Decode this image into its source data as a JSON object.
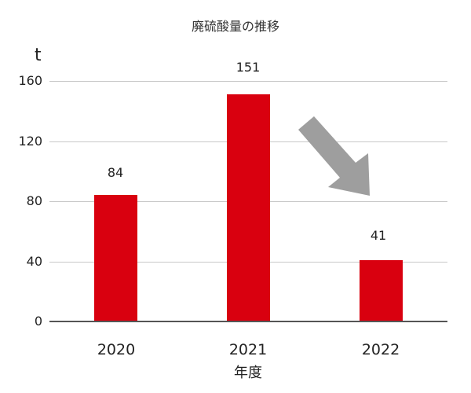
{
  "chart_data": {
    "type": "bar",
    "title": "廃硫酸量の推移",
    "xlabel": "年度",
    "ylabel": "t",
    "categories": [
      "2020",
      "2021",
      "2022"
    ],
    "values": [
      84,
      151,
      41
    ],
    "value_labels": [
      "84",
      "151",
      "41"
    ],
    "ylim": [
      0,
      160
    ],
    "yticks": [
      "0",
      "40",
      "80",
      "120",
      "160"
    ],
    "grid": true,
    "legend": null,
    "bar_color": "#D9000F",
    "annotations": [
      {
        "type": "arrow",
        "direction": "down-right",
        "color": "#9E9E9E",
        "meaning": "decreasing trend"
      }
    ]
  },
  "colors": {
    "bar": "#D9000F",
    "grid": "#C8C8C8",
    "axis": "#555555",
    "arrow": "#9E9E9E"
  }
}
